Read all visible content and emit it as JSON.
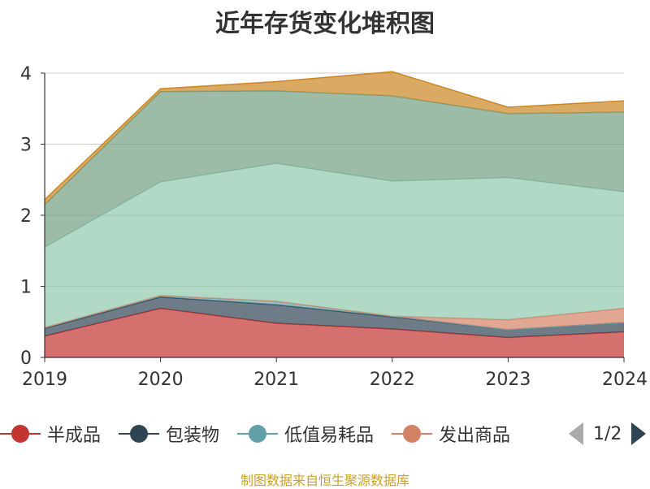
{
  "chart_data": {
    "type": "area",
    "title": "近年存货变化堆积图",
    "x": [
      "2019",
      "2020",
      "2021",
      "2022",
      "2023",
      "2024"
    ],
    "ylim": [
      0,
      4
    ],
    "yticks": [
      0,
      1,
      2,
      3,
      4
    ],
    "stacked": true,
    "grid": true,
    "series": [
      {
        "name": "半成品",
        "color": "#c23531",
        "values": [
          0.3,
          0.69,
          0.48,
          0.4,
          0.28,
          0.36
        ]
      },
      {
        "name": "包装物",
        "color": "#2f4554",
        "values": [
          0.11,
          0.16,
          0.26,
          0.17,
          0.11,
          0.13
        ]
      },
      {
        "name": "低值易耗品",
        "color": "#61a0a8",
        "values": [
          0.01,
          0.02,
          0.05,
          0.01,
          0.0,
          0.0
        ]
      },
      {
        "name": "发出商品",
        "color": "#d48265",
        "values": [
          0.0,
          0.0,
          0.0,
          0.0,
          0.14,
          0.2
        ]
      },
      {
        "name": "",
        "color": "#91c7ae",
        "values": [
          1.13,
          1.6,
          1.94,
          1.9,
          2.0,
          1.64
        ]
      },
      {
        "name": "",
        "color": "#749f83",
        "values": [
          0.6,
          1.27,
          1.02,
          1.2,
          0.9,
          1.12
        ]
      },
      {
        "name": "",
        "color": "#ca8622",
        "values": [
          0.07,
          0.04,
          0.13,
          0.34,
          0.09,
          0.16
        ]
      }
    ]
  },
  "legend": {
    "items": [
      "半成品",
      "包装物",
      "低值易耗品",
      "发出商品"
    ],
    "colors": [
      "#c23531",
      "#2f4554",
      "#61a0a8",
      "#d48265"
    ],
    "page": "1/2"
  },
  "source": "制图数据来自恒生聚源数据库"
}
